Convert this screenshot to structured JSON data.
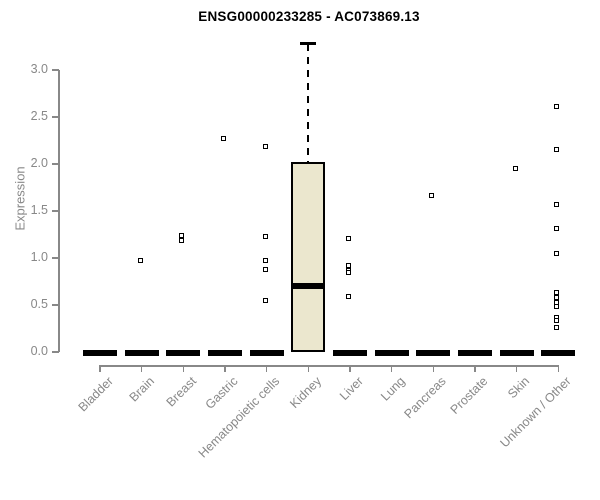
{
  "chart_data": {
    "type": "boxplot",
    "title": "ENSG00000233285 - AC073869.13",
    "ylabel": "Expression",
    "xlabel": "",
    "ylim": [
      0,
      3.3
    ],
    "grid": false,
    "legend": null,
    "yticks": [
      0,
      0.5,
      1,
      1.5,
      2,
      2.5,
      3
    ],
    "ytick_labels": [
      "0.0",
      "0.5",
      "1.0",
      "1.5",
      "2.0",
      "2.5",
      "3.0"
    ],
    "categories": [
      "Bladder",
      "Brain",
      "Breast",
      "Gastric",
      "Hematopoietic cells",
      "Kidney",
      "Liver",
      "Lung",
      "Pancreas",
      "Prostate",
      "Skin",
      "Unknown / Other"
    ],
    "boxes": [
      {
        "q1": 0,
        "median": 0,
        "q3": 0,
        "whisker_low": 0,
        "whisker_high": 0,
        "outliers": []
      },
      {
        "q1": 0,
        "median": 0,
        "q3": 0,
        "whisker_low": 0,
        "whisker_high": 0,
        "outliers": [
          0.97
        ]
      },
      {
        "q1": 0,
        "median": 0,
        "q3": 0,
        "whisker_low": 0,
        "whisker_high": 0,
        "outliers": [
          1.24,
          1.19
        ]
      },
      {
        "q1": 0,
        "median": 0,
        "q3": 0,
        "whisker_low": 0,
        "whisker_high": 0,
        "outliers": [
          2.27
        ]
      },
      {
        "q1": 0,
        "median": 0,
        "q3": 0,
        "whisker_low": 0,
        "whisker_high": 0,
        "outliers": [
          2.19,
          1.23,
          0.97,
          0.88,
          0.55
        ]
      },
      {
        "q1": 0,
        "median": 0.7,
        "q3": 2.02,
        "whisker_low": 0,
        "whisker_high": 3.28,
        "outliers": []
      },
      {
        "q1": 0,
        "median": 0,
        "q3": 0,
        "whisker_low": 0,
        "whisker_high": 0,
        "outliers": [
          1.21,
          0.92,
          0.87,
          0.85,
          0.59
        ]
      },
      {
        "q1": 0,
        "median": 0,
        "q3": 0,
        "whisker_low": 0,
        "whisker_high": 0,
        "outliers": []
      },
      {
        "q1": 0,
        "median": 0,
        "q3": 0,
        "whisker_low": 0,
        "whisker_high": 0,
        "outliers": [
          1.66
        ]
      },
      {
        "q1": 0,
        "median": 0,
        "q3": 0,
        "whisker_low": 0,
        "whisker_high": 0,
        "outliers": []
      },
      {
        "q1": 0,
        "median": 0,
        "q3": 0,
        "whisker_low": 0,
        "whisker_high": 0,
        "outliers": [
          1.95
        ]
      },
      {
        "q1": 0,
        "median": 0,
        "q3": 0,
        "whisker_low": 0,
        "whisker_high": 0,
        "outliers": [
          2.61,
          2.15,
          1.57,
          1.31,
          1.05,
          0.63,
          0.58,
          0.53,
          0.48,
          0.37,
          0.33,
          0.26
        ]
      }
    ],
    "colors": {
      "box_fill": "#ebe7ce",
      "box_border": "#000000",
      "median": "#000000",
      "outlier": "#000000",
      "axis": "#888888",
      "title": "#000000",
      "background": "#ffffff"
    }
  }
}
